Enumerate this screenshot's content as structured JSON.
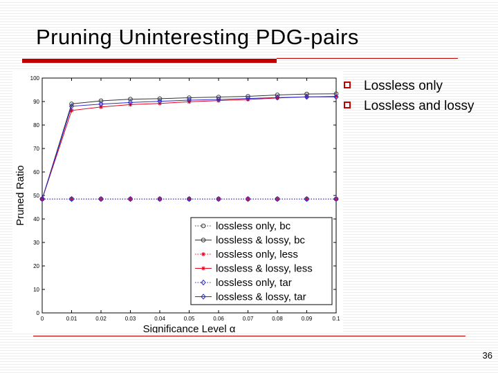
{
  "slide": {
    "title": "Pruning Uninteresting PDG-pairs",
    "bullets": [
      "Lossless only",
      "Lossless and lossy"
    ],
    "page_number": "36"
  },
  "colors": {
    "accent": "#c00000",
    "series_bc": "#333333",
    "series_less": "#e8001c",
    "series_tar": "#2a2acc",
    "series_lossless_only": "#9a3a9a"
  },
  "chart_data": {
    "type": "line",
    "xlabel": "Significance Level α",
    "ylabel": "Pruned Ratio",
    "x": [
      0,
      0.01,
      0.02,
      0.03,
      0.04,
      0.05,
      0.06,
      0.07,
      0.08,
      0.09,
      0.1
    ],
    "xticks": [
      "0",
      "0.01",
      "0.02",
      "0.03",
      "0.04",
      "0.05",
      "0.06",
      "0.07",
      "0.08",
      "0.09",
      "0.1"
    ],
    "xlim": [
      0,
      0.1
    ],
    "ylim": [
      0,
      100
    ],
    "yticks": [
      0,
      10,
      20,
      30,
      40,
      50,
      60,
      70,
      80,
      90,
      100
    ],
    "grid": false,
    "legend_position": "bottom-right",
    "series": [
      {
        "name": "lossless only, bc",
        "color": "#333333",
        "dash": "dotted",
        "marker": "circle",
        "values": [
          48.5,
          48.5,
          48.5,
          48.5,
          48.5,
          48.5,
          48.5,
          48.5,
          48.5,
          48.5,
          48.5
        ]
      },
      {
        "name": "lossless & lossy, bc",
        "color": "#333333",
        "dash": "solid",
        "marker": "circle",
        "values": [
          48.5,
          89,
          90.3,
          91,
          91.2,
          91.6,
          91.9,
          92.2,
          92.8,
          93.2,
          93.3
        ]
      },
      {
        "name": "lossless only, less",
        "color": "#e8001c",
        "dash": "dotted",
        "marker": "star",
        "values": [
          48.5,
          48.5,
          48.5,
          48.5,
          48.5,
          48.5,
          48.5,
          48.5,
          48.5,
          48.5,
          48.5
        ]
      },
      {
        "name": "lossless & lossy, less",
        "color": "#e8001c",
        "dash": "solid",
        "marker": "star",
        "values": [
          48.5,
          86.2,
          87.7,
          88.7,
          89.2,
          89.9,
          90.4,
          90.9,
          91.5,
          92,
          92.2
        ]
      },
      {
        "name": "lossless only, tar",
        "color": "#2a2acc",
        "dash": "dotted",
        "marker": "diamond",
        "values": [
          48.5,
          48.5,
          48.5,
          48.5,
          48.5,
          48.5,
          48.5,
          48.5,
          48.5,
          48.5,
          48.5
        ]
      },
      {
        "name": "lossless & lossy, tar",
        "color": "#2a2acc",
        "dash": "solid",
        "marker": "diamond",
        "values": [
          48.5,
          88,
          88.9,
          89.6,
          90.1,
          90.6,
          90.9,
          91.3,
          91.7,
          92,
          92
        ]
      }
    ]
  }
}
